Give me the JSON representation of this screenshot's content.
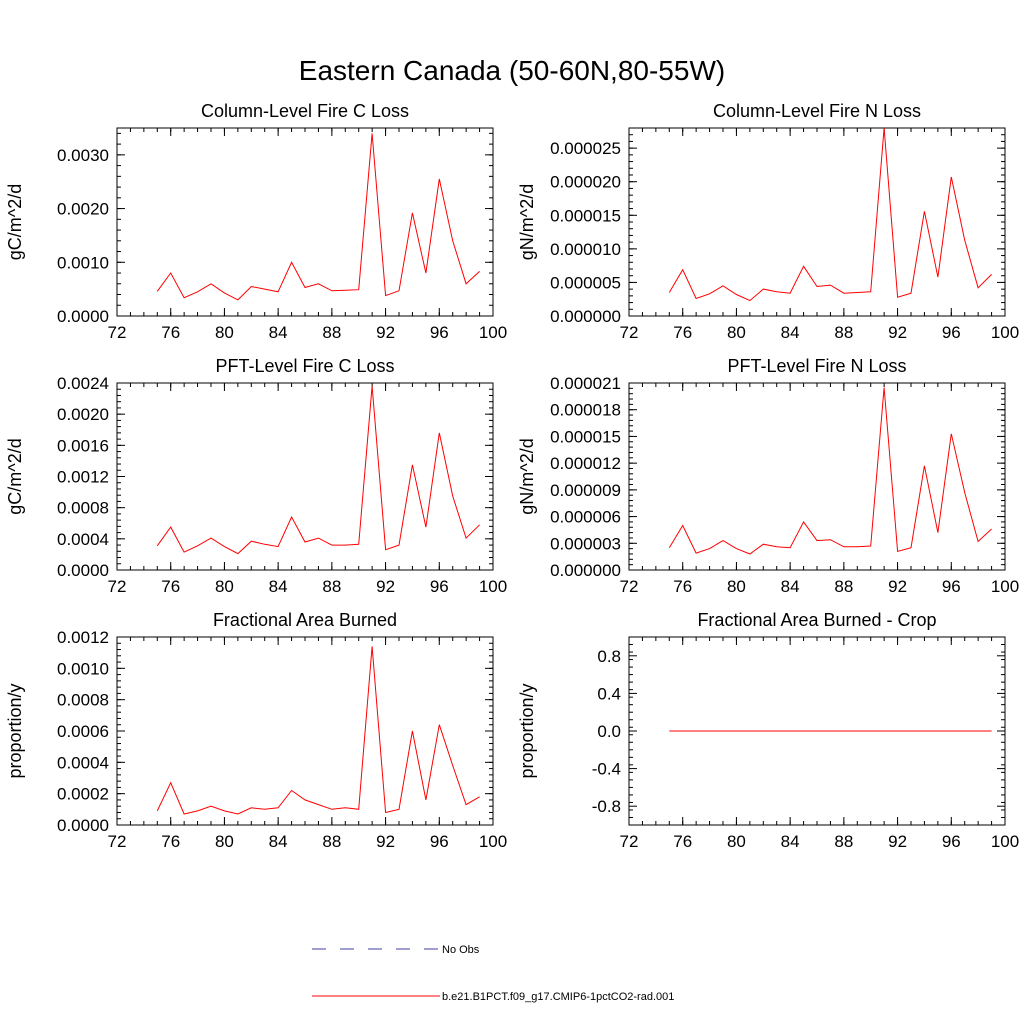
{
  "page": {
    "title": "Eastern Canada (50-60N,80-55W)"
  },
  "legend": {
    "items": [
      {
        "label": "No Obs",
        "color": "#4040a0",
        "style": "dashed"
      },
      {
        "label": "b.e21.B1PCT.f09_g17.CMIP6-1pctCO2-rad.001",
        "color": "#ff0000",
        "style": "solid"
      }
    ]
  },
  "chart_data": [
    {
      "type": "line",
      "title": "Column-Level Fire C Loss",
      "ylabel": "gC/m^2/d",
      "xlim": [
        72,
        100
      ],
      "ylim": [
        0,
        0.0035
      ],
      "xticks": [
        72,
        76,
        80,
        84,
        88,
        92,
        96,
        100
      ],
      "xtick_labels": [
        "72",
        "76",
        "80",
        "84",
        "88",
        "92",
        "96",
        "100"
      ],
      "yticks": [
        0,
        0.001,
        0.002,
        0.003
      ],
      "ytick_labels": [
        "0.0000",
        "0.0010",
        "0.0020",
        "0.0030"
      ],
      "series": [
        {
          "color": "#ff0000",
          "x": [
            75,
            76,
            77,
            78,
            79,
            80,
            81,
            82,
            83,
            84,
            85,
            86,
            87,
            88,
            89,
            90,
            91,
            92,
            93,
            94,
            95,
            96,
            97,
            98,
            99
          ],
          "y": [
            0.00046,
            0.0008,
            0.00034,
            0.00045,
            0.0006,
            0.00043,
            0.0003,
            0.00055,
            0.0005,
            0.00045,
            0.001,
            0.00053,
            0.0006,
            0.00047,
            0.00048,
            0.00049,
            0.0034,
            0.00038,
            0.00047,
            0.00192,
            0.0008,
            0.00255,
            0.0014,
            0.0006,
            0.00083
          ]
        }
      ]
    },
    {
      "type": "line",
      "title": "Column-Level Fire N Loss",
      "ylabel": "gN/m^2/d",
      "xlim": [
        72,
        100
      ],
      "ylim": [
        0,
        2.8e-05
      ],
      "xticks": [
        72,
        76,
        80,
        84,
        88,
        92,
        96,
        100
      ],
      "xtick_labels": [
        "72",
        "76",
        "80",
        "84",
        "88",
        "92",
        "96",
        "100"
      ],
      "yticks": [
        0,
        5e-06,
        1e-05,
        1.5e-05,
        2e-05,
        2.5e-05
      ],
      "ytick_labels": [
        "0.000000",
        "0.000005",
        "0.000010",
        "0.000015",
        "0.000020",
        "0.000025"
      ],
      "series": [
        {
          "color": "#ff0000",
          "x": [
            75,
            76,
            77,
            78,
            79,
            80,
            81,
            82,
            83,
            84,
            85,
            86,
            87,
            88,
            89,
            90,
            91,
            92,
            93,
            94,
            95,
            96,
            97,
            98,
            99
          ],
          "y": [
            3.5e-06,
            6.9e-06,
            2.6e-06,
            3.3e-06,
            4.5e-06,
            3.2e-06,
            2.3e-06,
            4e-06,
            3.6e-06,
            3.4e-06,
            7.4e-06,
            4.4e-06,
            4.6e-06,
            3.4e-06,
            3.5e-06,
            3.6e-06,
            2.8e-05,
            2.8e-06,
            3.4e-06,
            1.56e-05,
            5.8e-06,
            2.07e-05,
            1.13e-05,
            4.2e-06,
            6.2e-06
          ]
        }
      ]
    },
    {
      "type": "line",
      "title": "PFT-Level Fire C Loss",
      "ylabel": "gC/m^2/d",
      "xlim": [
        72,
        100
      ],
      "ylim": [
        0,
        0.0024
      ],
      "xticks": [
        72,
        76,
        80,
        84,
        88,
        92,
        96,
        100
      ],
      "xtick_labels": [
        "72",
        "76",
        "80",
        "84",
        "88",
        "92",
        "96",
        "100"
      ],
      "yticks": [
        0,
        0.0004,
        0.0008,
        0.0012,
        0.0016,
        0.002,
        0.0024
      ],
      "ytick_labels": [
        "0.0000",
        "0.0004",
        "0.0008",
        "0.0012",
        "0.0016",
        "0.0020",
        "0.0024"
      ],
      "series": [
        {
          "color": "#ff0000",
          "x": [
            75,
            76,
            77,
            78,
            79,
            80,
            81,
            82,
            83,
            84,
            85,
            86,
            87,
            88,
            89,
            90,
            91,
            92,
            93,
            94,
            95,
            96,
            97,
            98,
            99
          ],
          "y": [
            0.00031,
            0.00055,
            0.00023,
            0.00031,
            0.00041,
            0.0003,
            0.00021,
            0.00037,
            0.00033,
            0.0003,
            0.00068,
            0.00036,
            0.00041,
            0.00032,
            0.00032,
            0.00033,
            0.00236,
            0.00026,
            0.00032,
            0.00135,
            0.00055,
            0.00176,
            0.00095,
            0.00041,
            0.00058
          ]
        }
      ]
    },
    {
      "type": "line",
      "title": "PFT-Level Fire N Loss",
      "ylabel": "gN/m^2/d",
      "xlim": [
        72,
        100
      ],
      "ylim": [
        0,
        2.1e-05
      ],
      "xticks": [
        72,
        76,
        80,
        84,
        88,
        92,
        96,
        100
      ],
      "xtick_labels": [
        "72",
        "76",
        "80",
        "84",
        "88",
        "92",
        "96",
        "100"
      ],
      "yticks": [
        0,
        3e-06,
        6e-06,
        9e-06,
        1.2e-05,
        1.5e-05,
        1.8e-05,
        2.1e-05
      ],
      "ytick_labels": [
        "0.000000",
        "0.000003",
        "0.000006",
        "0.000009",
        "0.000012",
        "0.000015",
        "0.000018",
        "0.000021"
      ],
      "series": [
        {
          "color": "#ff0000",
          "x": [
            75,
            76,
            77,
            78,
            79,
            80,
            81,
            82,
            83,
            84,
            85,
            86,
            87,
            88,
            89,
            90,
            91,
            92,
            93,
            94,
            95,
            96,
            97,
            98,
            99
          ],
          "y": [
            2.5e-06,
            5e-06,
            1.9e-06,
            2.4e-06,
            3.3e-06,
            2.4e-06,
            1.8e-06,
            2.9e-06,
            2.6e-06,
            2.5e-06,
            5.4e-06,
            3.3e-06,
            3.4e-06,
            2.6e-06,
            2.6e-06,
            2.7e-06,
            2.05e-05,
            2.1e-06,
            2.5e-06,
            1.17e-05,
            4.2e-06,
            1.53e-05,
            8.7e-06,
            3.2e-06,
            4.6e-06
          ]
        }
      ]
    },
    {
      "type": "line",
      "title": "Fractional Area Burned",
      "ylabel": "proportion/y",
      "xlim": [
        72,
        100
      ],
      "ylim": [
        0,
        0.0012
      ],
      "xticks": [
        72,
        76,
        80,
        84,
        88,
        92,
        96,
        100
      ],
      "xtick_labels": [
        "72",
        "76",
        "80",
        "84",
        "88",
        "92",
        "96",
        "100"
      ],
      "yticks": [
        0,
        0.0002,
        0.0004,
        0.0006,
        0.0008,
        0.001,
        0.0012
      ],
      "ytick_labels": [
        "0.0000",
        "0.0002",
        "0.0004",
        "0.0006",
        "0.0008",
        "0.0010",
        "0.0012"
      ],
      "series": [
        {
          "color": "#ff0000",
          "x": [
            75,
            76,
            77,
            78,
            79,
            80,
            81,
            82,
            83,
            84,
            85,
            86,
            87,
            88,
            89,
            90,
            91,
            92,
            93,
            94,
            95,
            96,
            97,
            98,
            99
          ],
          "y": [
            9e-05,
            0.00027,
            7e-05,
            9e-05,
            0.00012,
            9e-05,
            7e-05,
            0.00011,
            0.0001,
            0.00011,
            0.00022,
            0.00016,
            0.00013,
            0.0001,
            0.00011,
            0.0001,
            0.00114,
            8e-05,
            0.0001,
            0.0006,
            0.00016,
            0.00064,
            0.00038,
            0.00013,
            0.00018
          ]
        }
      ]
    },
    {
      "type": "line",
      "title": "Fractional Area Burned - Crop",
      "ylabel": "proportion/y",
      "xlim": [
        72,
        100
      ],
      "ylim": [
        -1,
        1
      ],
      "xticks": [
        72,
        76,
        80,
        84,
        88,
        92,
        96,
        100
      ],
      "xtick_labels": [
        "72",
        "76",
        "80",
        "84",
        "88",
        "92",
        "96",
        "100"
      ],
      "yticks": [
        -0.8,
        -0.4,
        0,
        0.4,
        0.8
      ],
      "ytick_labels": [
        "-0.8",
        "-0.4",
        "0.0",
        "0.4",
        "0.8"
      ],
      "series": [
        {
          "color": "#ff0000",
          "x": [
            75,
            76,
            77,
            78,
            79,
            80,
            81,
            82,
            83,
            84,
            85,
            86,
            87,
            88,
            89,
            90,
            91,
            92,
            93,
            94,
            95,
            96,
            97,
            98,
            99
          ],
          "y": [
            0,
            0,
            0,
            0,
            0,
            0,
            0,
            0,
            0,
            0,
            0,
            0,
            0,
            0,
            0,
            0,
            0,
            0,
            0,
            0,
            0,
            0,
            0,
            0,
            0
          ]
        }
      ]
    }
  ]
}
